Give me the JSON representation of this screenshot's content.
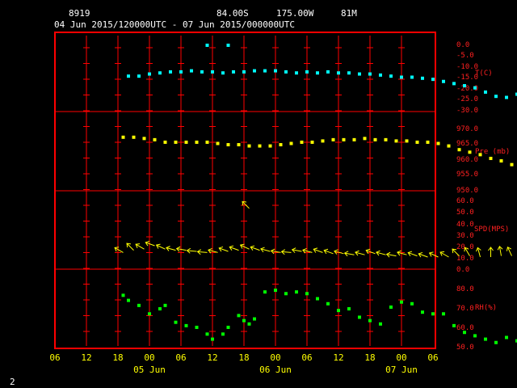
{
  "header": {
    "station": "8919",
    "lat": "84.00S",
    "lon": "175.00W",
    "elev": "81M",
    "period": "04 Jun 2015/120000UTC - 07 Jun 2015/000000UTC"
  },
  "footer": {
    "page_number": "2"
  },
  "colors": {
    "frame": "#ff0000",
    "grid": "#ff0000",
    "temperature": "#00ffff",
    "pressure": "#ffff00",
    "wind": "#ffff00",
    "humidity": "#00ff00",
    "axis_text": "#ffff00",
    "header_text": "#ffffff"
  },
  "x_axis": {
    "hour_ticks": [
      "06",
      "12",
      "18",
      "00",
      "06",
      "12",
      "18",
      "00",
      "06",
      "12",
      "18",
      "00",
      "06"
    ],
    "day_labels": [
      "05 Jun",
      "06 Jun",
      "07 Jun"
    ]
  },
  "chart_data": [
    {
      "type": "scatter",
      "panel": "temperature",
      "ylabel": "T(C)",
      "yticks": [
        "0.0",
        "-5.0",
        "-10.0",
        "-15.0",
        "-20.0",
        "-25.0",
        "-30.0"
      ],
      "ylim": [
        -30,
        0
      ],
      "x_units": "hours since 04 Jun 2015 06 UTC",
      "points": [
        [
          14,
          -14.5
        ],
        [
          16,
          -14.5
        ],
        [
          18,
          -13.5
        ],
        [
          20,
          -13
        ],
        [
          22,
          -12.5
        ],
        [
          24,
          -12.5
        ],
        [
          26,
          -12
        ],
        [
          28,
          -12.5
        ],
        [
          30,
          -12.5
        ],
        [
          32,
          -13
        ],
        [
          34,
          -12.5
        ],
        [
          36,
          -12.5
        ],
        [
          38,
          -12
        ],
        [
          40,
          -12
        ],
        [
          42,
          -12
        ],
        [
          44,
          -12.5
        ],
        [
          46,
          -13
        ],
        [
          48,
          -12.5
        ],
        [
          50,
          -13
        ],
        [
          52,
          -12.5
        ],
        [
          54,
          -13
        ],
        [
          56,
          -13
        ],
        [
          58,
          -13.5
        ],
        [
          60,
          -13.5
        ],
        [
          62,
          -14
        ],
        [
          64,
          -14.5
        ],
        [
          66,
          -15
        ],
        [
          68,
          -15
        ],
        [
          70,
          -15.5
        ],
        [
          72,
          -16
        ],
        [
          74,
          -17
        ],
        [
          76,
          -18
        ],
        [
          78,
          -19
        ],
        [
          80,
          -20
        ],
        [
          82,
          -22
        ],
        [
          84,
          -24
        ],
        [
          86,
          -24.5
        ],
        [
          88,
          -23
        ],
        [
          90,
          -20
        ],
        [
          92,
          -23
        ],
        [
          94,
          -22
        ],
        [
          96,
          -22
        ],
        [
          98,
          -22
        ]
      ],
      "outliers": [
        [
          29,
          0
        ],
        [
          33,
          0
        ]
      ]
    },
    {
      "type": "scatter",
      "panel": "pressure",
      "ylabel": "Pre (mb)",
      "yticks": [
        "970.0",
        "965.0",
        "960.0",
        "955.0",
        "950.0"
      ],
      "ylim": [
        950,
        975
      ],
      "x_units": "hours since 04 Jun 2015 06 UTC",
      "points": [
        [
          13,
          971.5
        ],
        [
          15,
          971.5
        ],
        [
          17,
          971
        ],
        [
          19,
          970.5
        ],
        [
          21,
          969.5
        ],
        [
          23,
          969.5
        ],
        [
          25,
          969.5
        ],
        [
          27,
          969.5
        ],
        [
          29,
          969.5
        ],
        [
          31,
          969
        ],
        [
          33,
          968.5
        ],
        [
          35,
          968.5
        ],
        [
          37,
          968
        ],
        [
          39,
          968
        ],
        [
          41,
          968
        ],
        [
          43,
          968.5
        ],
        [
          45,
          969
        ],
        [
          47,
          969.5
        ],
        [
          49,
          969.5
        ],
        [
          51,
          970
        ],
        [
          53,
          970.5
        ],
        [
          55,
          970.5
        ],
        [
          57,
          970.5
        ],
        [
          59,
          971
        ],
        [
          61,
          970.5
        ],
        [
          63,
          970.5
        ],
        [
          65,
          970
        ],
        [
          67,
          970
        ],
        [
          69,
          969.5
        ],
        [
          71,
          969.5
        ],
        [
          73,
          969
        ],
        [
          75,
          968
        ],
        [
          77,
          966.5
        ],
        [
          79,
          965.5
        ],
        [
          81,
          964.5
        ],
        [
          83,
          963
        ],
        [
          85,
          962
        ],
        [
          87,
          960.5
        ],
        [
          89,
          959
        ],
        [
          91,
          957.5
        ],
        [
          93,
          956.5
        ],
        [
          95,
          955
        ],
        [
          97,
          953.5
        ]
      ]
    },
    {
      "type": "scatter",
      "panel": "wind",
      "ylabel": "SPD(MPS)",
      "yticks": [
        "60.0",
        "50.0",
        "40.0",
        "30.0",
        "20.0",
        "10.0",
        "0.0"
      ],
      "ylim": [
        0,
        60
      ],
      "x_units": "hours since 04 Jun 2015 06 UTC",
      "points": [
        [
          13,
          14,
          60
        ],
        [
          15,
          16,
          45
        ],
        [
          17,
          17,
          60
        ],
        [
          19,
          20,
          70
        ],
        [
          21,
          17,
          65
        ],
        [
          23,
          16,
          75
        ],
        [
          25,
          16,
          80
        ],
        [
          27,
          15,
          85
        ],
        [
          29,
          14,
          85
        ],
        [
          31,
          14,
          75
        ],
        [
          33,
          15,
          70
        ],
        [
          35,
          16,
          70
        ],
        [
          37,
          17,
          65
        ],
        [
          39,
          16,
          70
        ],
        [
          41,
          15,
          75
        ],
        [
          43,
          14,
          80
        ],
        [
          45,
          14,
          85
        ],
        [
          47,
          15,
          80
        ],
        [
          49,
          14,
          75
        ],
        [
          51,
          14,
          70
        ],
        [
          53,
          13,
          70
        ],
        [
          55,
          13,
          75
        ],
        [
          57,
          12,
          80
        ],
        [
          59,
          12,
          75
        ],
        [
          61,
          13,
          70
        ],
        [
          63,
          12,
          75
        ],
        [
          65,
          11,
          80
        ],
        [
          67,
          12,
          75
        ],
        [
          69,
          11,
          70
        ],
        [
          71,
          10,
          70
        ],
        [
          73,
          10,
          65
        ],
        [
          75,
          10,
          60
        ],
        [
          77,
          11,
          45
        ],
        [
          79,
          11,
          30
        ],
        [
          81,
          10,
          15
        ],
        [
          83,
          10,
          0
        ],
        [
          85,
          11,
          10
        ],
        [
          87,
          11,
          25
        ],
        [
          89,
          10,
          20
        ],
        [
          91,
          10,
          15
        ],
        [
          93,
          9,
          5
        ],
        [
          95,
          10,
          0
        ],
        [
          97,
          10,
          355
        ]
      ],
      "outliers": [
        [
          37,
          53,
          45
        ]
      ]
    },
    {
      "type": "scatter",
      "panel": "humidity",
      "ylabel": "RH(%)",
      "yticks": [
        "80.0",
        "70.0",
        "60.0",
        "50.0"
      ],
      "ylim": [
        50,
        85
      ],
      "x_units": "hours since 04 Jun 2015 06 UTC",
      "points": [
        [
          13,
          81
        ],
        [
          14,
          78
        ],
        [
          16,
          75
        ],
        [
          18,
          70
        ],
        [
          20,
          73
        ],
        [
          21,
          75
        ],
        [
          23,
          65
        ],
        [
          25,
          63
        ],
        [
          27,
          62
        ],
        [
          29,
          58
        ],
        [
          30,
          55
        ],
        [
          32,
          58
        ],
        [
          33,
          62
        ],
        [
          35,
          69
        ],
        [
          36,
          66
        ],
        [
          37,
          64
        ],
        [
          38,
          67
        ],
        [
          40,
          83
        ],
        [
          42,
          84
        ],
        [
          44,
          82
        ],
        [
          46,
          83
        ],
        [
          48,
          82
        ],
        [
          50,
          79
        ],
        [
          52,
          76
        ],
        [
          54,
          72
        ],
        [
          56,
          73
        ],
        [
          58,
          68
        ],
        [
          60,
          66
        ],
        [
          62,
          64
        ],
        [
          64,
          74
        ],
        [
          66,
          77
        ],
        [
          68,
          76
        ],
        [
          70,
          71
        ],
        [
          72,
          70
        ],
        [
          74,
          70
        ],
        [
          76,
          63
        ],
        [
          78,
          59
        ],
        [
          80,
          57
        ],
        [
          82,
          55
        ],
        [
          84,
          53
        ],
        [
          86,
          56
        ],
        [
          88,
          54
        ],
        [
          90,
          58
        ],
        [
          91,
          52
        ],
        [
          93,
          57
        ],
        [
          95,
          62
        ],
        [
          97,
          66
        ]
      ]
    }
  ]
}
